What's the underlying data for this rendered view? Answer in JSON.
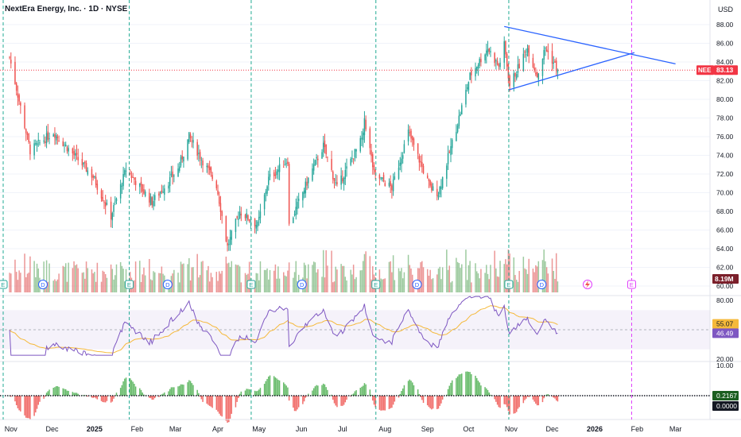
{
  "header": {
    "title": "NextEra Energy, Inc. · 1D · NYSE",
    "currency": "USD"
  },
  "colors": {
    "up": "#26a69a",
    "down": "#ef5350",
    "vol_up": "#7cb87f",
    "vol_down": "#e57373",
    "triangle": "#2962ff",
    "rsi": "#7e57c2",
    "rsi_ma": "#f5b93a",
    "last_price": "#f23645",
    "event_line": "#22ab94",
    "future_line": "#e040fb"
  },
  "x_axis": {
    "labels": [
      "Nov",
      "Dec",
      "2025",
      "Feb",
      "Mar",
      "Apr",
      "May",
      "Jun",
      "Jul",
      "Aug",
      "Sep",
      "Oct",
      "Nov",
      "Dec",
      "2026",
      "Feb",
      "Mar"
    ]
  },
  "price_axis": {
    "ticks": [
      "88.00",
      "86.00",
      "84.00",
      "82.00",
      "80.00",
      "78.00",
      "76.00",
      "74.00",
      "72.00",
      "70.00",
      "68.00",
      "66.00",
      "64.00",
      "62.00",
      "60.00"
    ],
    "last_symbol": "NEE",
    "last_price": "83.13",
    "volume_label": "8.19M"
  },
  "rsi_axis": {
    "ticks": [
      "80.00",
      "20.00"
    ],
    "ma_value": "55.07",
    "rsi_value": "46.49"
  },
  "macd_axis": {
    "ticks": [
      "10.00"
    ],
    "histogram_value": "0.2167",
    "zero_value": "0.0000"
  },
  "markers": {
    "earnings": "E",
    "dividend": "D"
  },
  "chart_data": {
    "type": "candlestick",
    "symbol": "NEE",
    "period": "1D",
    "ylim": [
      60,
      89
    ],
    "key_closes": [
      {
        "date": "2024-10-31",
        "close": 84.5
      },
      {
        "date": "2024-11-15",
        "close": 74.5
      },
      {
        "date": "2024-12-02",
        "close": 76.5
      },
      {
        "date": "2024-12-31",
        "close": 71.7
      },
      {
        "date": "2025-01-13",
        "close": 67.5
      },
      {
        "date": "2025-01-24",
        "close": 72.5
      },
      {
        "date": "2025-02-12",
        "close": 69.0
      },
      {
        "date": "2025-03-03",
        "close": 72.5
      },
      {
        "date": "2025-03-11",
        "close": 76.0
      },
      {
        "date": "2025-03-31",
        "close": 70.8
      },
      {
        "date": "2025-04-08",
        "close": 64.2
      },
      {
        "date": "2025-04-17",
        "close": 68.0
      },
      {
        "date": "2025-04-30",
        "close": 66.5
      },
      {
        "date": "2025-05-08",
        "close": 71.5
      },
      {
        "date": "2025-05-22",
        "close": 73.5
      },
      {
        "date": "2025-05-23",
        "close": 66.5
      },
      {
        "date": "2025-06-09",
        "close": 72.5
      },
      {
        "date": "2025-06-17",
        "close": 75.0
      },
      {
        "date": "2025-06-27",
        "close": 70.5
      },
      {
        "date": "2025-07-16",
        "close": 76.0
      },
      {
        "date": "2025-07-17",
        "close": 78.0
      },
      {
        "date": "2025-07-24",
        "close": 72.0
      },
      {
        "date": "2025-08-06",
        "close": 70.5
      },
      {
        "date": "2025-08-18",
        "close": 76.5
      },
      {
        "date": "2025-09-03",
        "close": 70.5
      },
      {
        "date": "2025-09-09",
        "close": 70.0
      },
      {
        "date": "2025-09-23",
        "close": 77.5
      },
      {
        "date": "2025-10-02",
        "close": 82.5
      },
      {
        "date": "2025-10-15",
        "close": 85.5
      },
      {
        "date": "2025-10-23",
        "close": 83.5
      },
      {
        "date": "2025-10-27",
        "close": 85.8
      },
      {
        "date": "2025-10-31",
        "close": 81.5
      },
      {
        "date": "2025-11-13",
        "close": 85.5
      },
      {
        "date": "2025-11-20",
        "close": 82.5
      },
      {
        "date": "2025-11-26",
        "close": 85.5
      },
      {
        "date": "2025-12-05",
        "close": 83.13
      }
    ],
    "last_close": 83.13,
    "triangle_upper": {
      "start": [
        "2025-10-27",
        87.8
      ],
      "end": [
        "2026-03-01",
        83.8
      ]
    },
    "triangle_lower": {
      "start": [
        "2025-10-30",
        81.0
      ],
      "end": [
        "2026-01-30",
        85.0
      ]
    },
    "volume_last": "8.19M",
    "rsi_last": 46.49,
    "rsi_ma_last": 55.07,
    "macd_histogram_last": 0.2167
  }
}
